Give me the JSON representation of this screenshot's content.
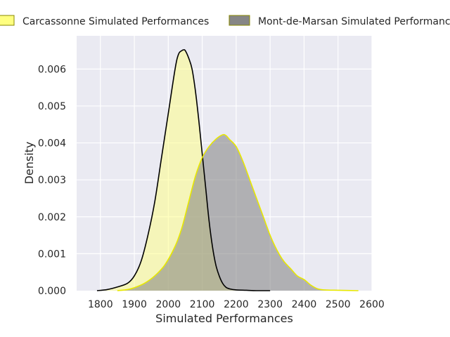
{
  "chart_data": {
    "type": "area",
    "title": "",
    "xlabel": "Simulated Performances",
    "ylabel": "Density",
    "xlim": [
      1730,
      2600
    ],
    "ylim": [
      0,
      0.0069
    ],
    "xticks": [
      1800,
      1900,
      2000,
      2100,
      2200,
      2300,
      2400,
      2500,
      2600
    ],
    "xtick_labels": [
      "1800",
      "1900",
      "2000",
      "2100",
      "2200",
      "2300",
      "2400",
      "2500",
      "2600"
    ],
    "yticks": [
      0,
      0.001,
      0.002,
      0.003,
      0.004,
      0.005,
      0.006
    ],
    "ytick_labels": [
      "0.000",
      "0.001",
      "0.002",
      "0.003",
      "0.004",
      "0.005",
      "0.006"
    ],
    "grid": true,
    "legend_position": "top",
    "series": [
      {
        "name": "Carcassonne Simulated Performances",
        "fill_color": "#ffff80",
        "fill_opacity": 0.5,
        "line_color": "#000000",
        "legend_edge": "#888800",
        "x": [
          1790,
          1820,
          1850,
          1880,
          1900,
          1920,
          1940,
          1960,
          1980,
          2000,
          2020,
          2030,
          2040,
          2045,
          2050,
          2060,
          2070,
          2080,
          2090,
          2100,
          2110,
          2120,
          2130,
          2140,
          2150,
          2160,
          2170,
          2180,
          2200,
          2230,
          2260,
          2300
        ],
        "y": [
          0.0,
          3e-05,
          0.0001,
          0.0002,
          0.0004,
          0.0008,
          0.0015,
          0.0024,
          0.0036,
          0.0048,
          0.006,
          0.0064,
          0.0065,
          0.00652,
          0.0065,
          0.0063,
          0.006,
          0.0054,
          0.0046,
          0.0037,
          0.0028,
          0.0019,
          0.0012,
          0.0007,
          0.0004,
          0.0002,
          9e-05,
          5e-05,
          2e-05,
          1e-05,
          0.0,
          0.0
        ]
      },
      {
        "name": "Mont-de-Marsan Simulated Performances",
        "fill_color": "#808080",
        "fill_opacity": 0.55,
        "line_color": "#e8e800",
        "legend_edge": "#888800",
        "x": [
          1850,
          1880,
          1900,
          1930,
          1960,
          1990,
          2020,
          2040,
          2060,
          2080,
          2100,
          2120,
          2140,
          2160,
          2170,
          2180,
          2200,
          2220,
          2240,
          2260,
          2280,
          2300,
          2320,
          2340,
          2360,
          2380,
          2400,
          2420,
          2440,
          2460,
          2500,
          2560
        ],
        "y": [
          0.0,
          3e-05,
          8e-05,
          0.0002,
          0.0004,
          0.0007,
          0.0012,
          0.0017,
          0.0024,
          0.0031,
          0.0036,
          0.0039,
          0.0041,
          0.00422,
          0.0042,
          0.0041,
          0.0039,
          0.0035,
          0.003,
          0.0025,
          0.002,
          0.0015,
          0.0011,
          0.0008,
          0.0006,
          0.0004,
          0.0003,
          0.00015,
          5e-05,
          2e-05,
          1e-05,
          0.0
        ]
      }
    ]
  }
}
